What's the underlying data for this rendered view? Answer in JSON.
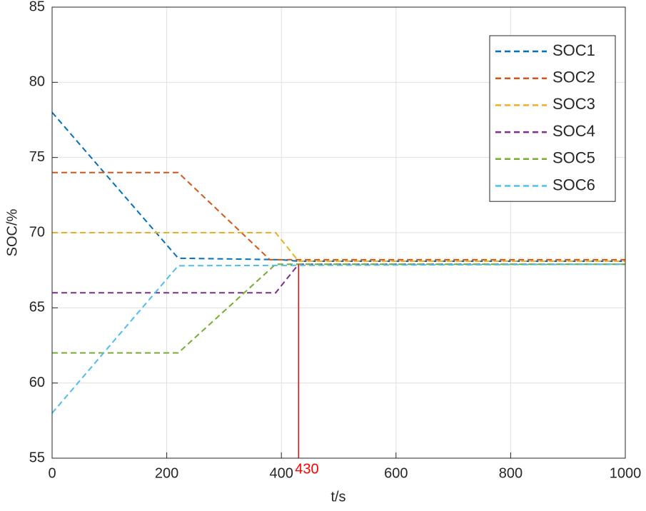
{
  "chart_data": {
    "type": "line",
    "x_label": "t/s",
    "y_label": "SOC/%",
    "xlim": [
      0,
      1000
    ],
    "xticks": [
      0,
      200,
      400,
      600,
      800,
      1000
    ],
    "ylim": [
      55,
      85
    ],
    "yticks": [
      55,
      60,
      65,
      70,
      75,
      80,
      85
    ],
    "grid": true,
    "legend": "upper right",
    "series": [
      {
        "name": "SOC1",
        "color": "#0072BD",
        "x": [
          0,
          220,
          400,
          430,
          1000
        ],
        "values": [
          78,
          68.3,
          68.2,
          68.1,
          68.1
        ]
      },
      {
        "name": "SOC2",
        "color": "#D95319",
        "x": [
          0,
          220,
          380,
          1000
        ],
        "values": [
          74,
          74,
          68.2,
          68.2
        ]
      },
      {
        "name": "SOC3",
        "color": "#EDB120",
        "x": [
          0,
          390,
          430,
          1000
        ],
        "values": [
          70,
          70,
          68.1,
          68.1
        ]
      },
      {
        "name": "SOC4",
        "color": "#7E2F8E",
        "x": [
          0,
          390,
          430,
          1000
        ],
        "values": [
          66,
          66,
          67.9,
          67.9
        ]
      },
      {
        "name": "SOC5",
        "color": "#77AC30",
        "x": [
          0,
          220,
          390,
          1000
        ],
        "values": [
          62,
          62,
          67.9,
          67.9
        ]
      },
      {
        "name": "SOC6",
        "color": "#4DBEEE",
        "x": [
          0,
          220,
          1000
        ],
        "values": [
          58,
          67.8,
          67.9
        ]
      }
    ],
    "annotation": {
      "x": 430,
      "y": 67.9,
      "color": "#ff0000"
    }
  }
}
